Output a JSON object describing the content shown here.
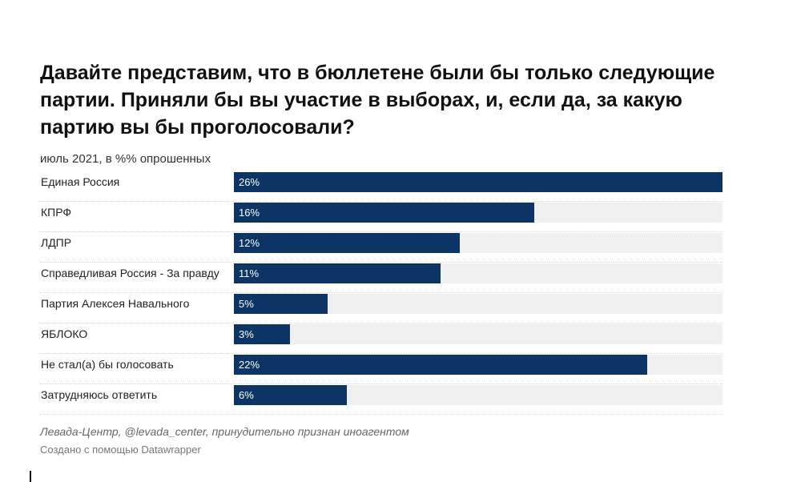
{
  "title": "Давайте представим, что в бюллетене были бы только следующие партии. Приняли бы вы участие в выборах, и, если да, за какую партию вы бы проголосовали?",
  "subtitle": "июль 2021, в %% опрошенных",
  "notes": "Левада-Центр, @levada_center, принудительно признан иноагентом",
  "credit": "Создано с помощью Datawrapper",
  "colors": {
    "bar": "#0c3566",
    "track": "#f0f0f0"
  },
  "chart_data": {
    "type": "bar",
    "orientation": "horizontal",
    "title": "Давайте представим, что в бюллетене были бы только следующие партии. Приняли бы вы участие в выборах, и, если да, за какую партию вы бы проголосовали?",
    "subtitle": "июль 2021, в %% опрошенных",
    "categories": [
      "Единая Россия",
      "КПРФ",
      "ЛДПР",
      "Справедливая Россия - За правду",
      "Партия Алексея Навального",
      "ЯБЛОКО",
      "Не стал(а) бы голосовать",
      "Затрудняюсь ответить"
    ],
    "values": [
      26,
      16,
      12,
      11,
      5,
      3,
      22,
      6
    ],
    "value_labels": [
      "26%",
      "16%",
      "12%",
      "11%",
      "5%",
      "3%",
      "22%",
      "6%"
    ],
    "xlim": [
      0,
      26
    ],
    "grid": false
  }
}
